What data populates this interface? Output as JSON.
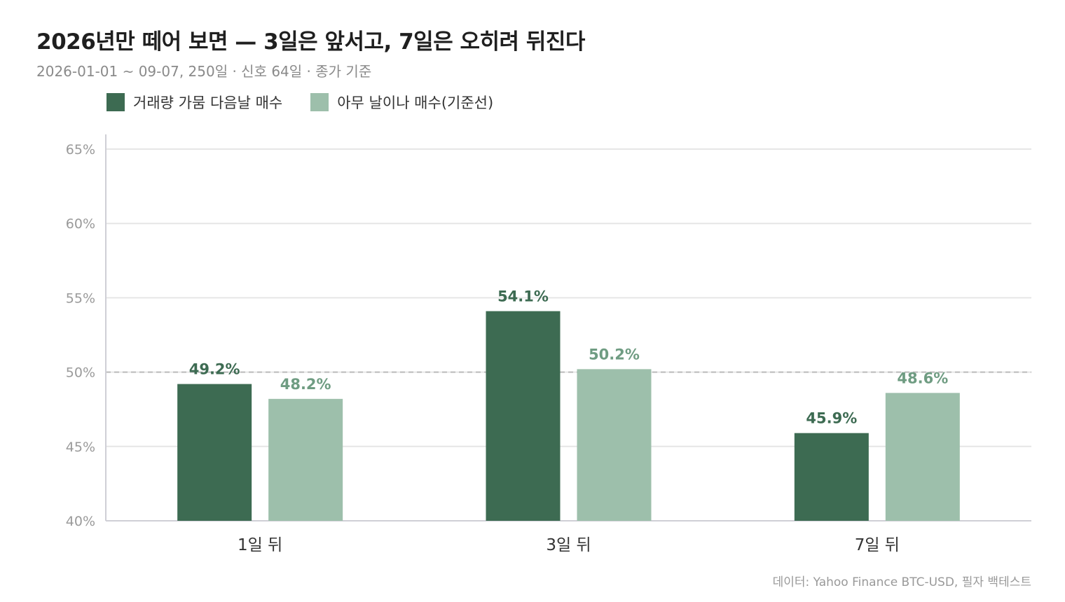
{
  "header": {
    "title": "2026년만 떼어 보면 — 3일은 앞서고, 7일은 오히려 뒤진다",
    "subtitle": "2026-01-01 ~ 09-07, 250일 · 신호 64일 · 종가 기준"
  },
  "footer": {
    "source": "데이터: Yahoo Finance BTC-USD, 필자 백테스트"
  },
  "colors": {
    "signal": "#3d6b52",
    "baseline": "#9dbfab",
    "grid": "#e6e6e6",
    "reference_line": "#bbbbbb",
    "signal_label": "#3d6b52",
    "baseline_label": "#6f9c82"
  },
  "chart_data": {
    "type": "bar",
    "categories": [
      "1일 뒤",
      "3일 뒤",
      "7일 뒤"
    ],
    "series": [
      {
        "name": "거래량 가뭄 다음날 매수",
        "values": [
          49.2,
          54.1,
          45.9
        ]
      },
      {
        "name": "아무 날이나 매수(기준선)",
        "values": [
          48.2,
          50.2,
          48.6
        ]
      }
    ],
    "data_labels": [
      [
        "49.2%",
        "54.1%",
        "45.9%"
      ],
      [
        "48.2%",
        "50.2%",
        "48.6%"
      ]
    ],
    "ylim": [
      40,
      65
    ],
    "yticks": [
      40,
      45,
      50,
      55,
      60,
      65
    ],
    "ytick_labels": [
      "40%",
      "45%",
      "50%",
      "55%",
      "60%",
      "65%"
    ],
    "reference_line": 50,
    "grid": true,
    "legend_position": "top-left"
  }
}
